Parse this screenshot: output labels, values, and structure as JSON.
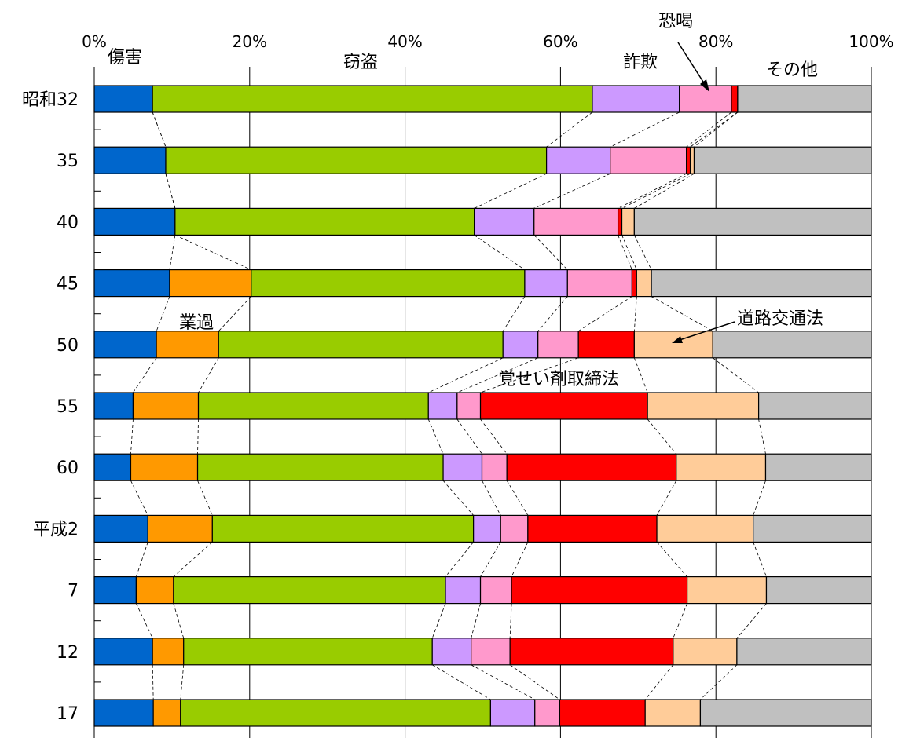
{
  "chart_data": {
    "type": "bar",
    "orientation": "horizontal",
    "stacked": "percent",
    "xlim": [
      0,
      100
    ],
    "x_ticks": [
      "0%",
      "20%",
      "40%",
      "60%",
      "80%",
      "100%"
    ],
    "grid": true,
    "categories": [
      "昭和32",
      "35",
      "40",
      "45",
      "50",
      "55",
      "60",
      "平成2",
      "7",
      "12",
      "17"
    ],
    "series": [
      {
        "name": "傷害",
        "color": "#0066cc",
        "values": [
          7.5,
          9.2,
          10.4,
          9.7,
          8.0,
          5.0,
          4.7,
          6.9,
          5.4,
          7.5,
          7.6
        ]
      },
      {
        "name": "業過",
        "color": "#ff9900",
        "values": [
          0,
          0,
          0,
          10.5,
          8.0,
          8.4,
          8.6,
          8.3,
          4.8,
          4.0,
          3.5
        ]
      },
      {
        "name": "窃盗",
        "color": "#99cc00",
        "values": [
          56.6,
          49.0,
          38.5,
          35.2,
          36.6,
          29.6,
          31.6,
          33.6,
          35.0,
          32.0,
          39.9
        ]
      },
      {
        "name": "詐欺",
        "color": "#cc99ff",
        "values": [
          11.2,
          8.2,
          7.7,
          5.5,
          4.5,
          3.7,
          5.0,
          3.5,
          4.5,
          5.0,
          5.7
        ]
      },
      {
        "name": "恐喝",
        "color": "#ff99cc",
        "values": [
          6.7,
          9.8,
          10.8,
          8.3,
          5.2,
          3.0,
          3.2,
          3.5,
          4.0,
          5.0,
          3.2
        ]
      },
      {
        "name": "覚せい剤取締法",
        "color": "#ff0000",
        "values": [
          0.8,
          0.5,
          0.5,
          0.6,
          7.2,
          21.5,
          21.8,
          16.6,
          22.6,
          21.0,
          11.0
        ]
      },
      {
        "name": "道路交通法",
        "color": "#ffcc99",
        "values": [
          0,
          0.5,
          1.6,
          1.9,
          10.1,
          14.3,
          11.5,
          12.4,
          10.2,
          8.2,
          7.1
        ]
      },
      {
        "name": "その他",
        "color": "#c0c0c0",
        "values": [
          17.2,
          22.8,
          30.5,
          28.3,
          20.4,
          14.5,
          13.6,
          15.2,
          13.5,
          17.3,
          22.0
        ]
      }
    ],
    "annotations": {
      "shougai": "傷害",
      "settou": "窃盗",
      "sagi": "詐欺",
      "kyoukatsu": "恐喝",
      "sonota": "その他",
      "gyoka": "業過",
      "dourokoutsuu": "道路交通法",
      "kakuseizai": "覚せい剤取締法"
    }
  }
}
